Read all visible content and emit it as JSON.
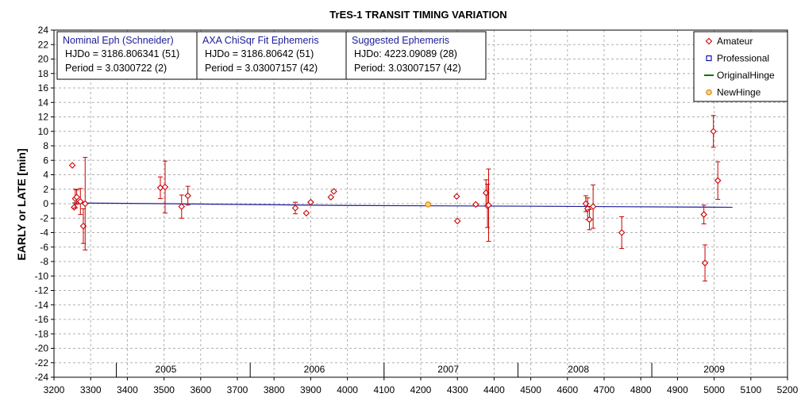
{
  "chart_data": {
    "type": "scatter",
    "title": "TrES-1 TRANSIT TIMING VARIATION",
    "ylabel": "EARLY or LATE [min]",
    "xlabel": "",
    "xlim": [
      3200,
      5200
    ],
    "ylim": [
      -24,
      24
    ],
    "x_ticks": [
      3200,
      3300,
      3400,
      3500,
      3600,
      3700,
      3800,
      3900,
      4000,
      4100,
      4200,
      4300,
      4400,
      4500,
      4600,
      4700,
      4800,
      4900,
      5000,
      5100,
      5200
    ],
    "y_ticks": [
      24,
      22,
      20,
      18,
      16,
      14,
      12,
      10,
      8,
      6,
      4,
      2,
      0,
      -2,
      -4,
      -6,
      -8,
      -10,
      -12,
      -14,
      -16,
      -18,
      -20,
      -22,
      -24
    ],
    "grid": true,
    "legend_position": "top-right",
    "legend": [
      {
        "label": "Amateur",
        "marker": "diamond",
        "color": "#cc0000"
      },
      {
        "label": "Professional",
        "marker": "square",
        "color": "#0000aa"
      },
      {
        "label": "OriginalHinge",
        "marker": "line",
        "color": "#007700"
      },
      {
        "label": "NewHinge",
        "marker": "circle",
        "color": "#e08a00"
      }
    ],
    "year_labels": [
      {
        "label": "2005",
        "x": 3505
      },
      {
        "label": "2006",
        "x": 3910
      },
      {
        "label": "2007",
        "x": 4275
      },
      {
        "label": "2008",
        "x": 4630
      },
      {
        "label": "2009",
        "x": 5000
      }
    ],
    "year_dividers": [
      3370,
      3735,
      4100,
      4465,
      4830,
      5200
    ],
    "ephemeris_boxes": [
      {
        "head": "Nominal Eph (Schneider)",
        "line1": "HJDo = 3186.806341 (51)",
        "line2": "Period = 3.0300722 (2)"
      },
      {
        "head": "AXA ChiSqr Fit Ephemeris",
        "line1": "HJDo = 3186.80642 (51)",
        "line2": "Period = 3.03007157 (42)"
      },
      {
        "head": "Suggested Ephemeris",
        "line1": "HJDo:  4223.09089 (28)",
        "line2": "Period: 3.03007157 (42)"
      }
    ],
    "trend_line": {
      "name": "Professional",
      "color": "#1c1c9a",
      "points": [
        [
          3250,
          0.1
        ],
        [
          3500,
          0.0
        ],
        [
          3800,
          -0.15
        ],
        [
          4000,
          -0.25
        ],
        [
          4500,
          -0.35
        ],
        [
          5050,
          -0.5
        ]
      ]
    },
    "series": [
      {
        "name": "Amateur",
        "color": "#cc0000",
        "points": [
          {
            "x": 3250,
            "y": 5.3,
            "err": 0
          },
          {
            "x": 3255,
            "y": -0.5,
            "err": 0
          },
          {
            "x": 3258,
            "y": 0.7,
            "err": 1.3
          },
          {
            "x": 3262,
            "y": 0.9,
            "err": 1.0
          },
          {
            "x": 3272,
            "y": 0.3,
            "err": 1.8
          },
          {
            "x": 3280,
            "y": -3.1,
            "err": 2.4
          },
          {
            "x": 3285,
            "y": 0.0,
            "err": 6.4
          },
          {
            "x": 3490,
            "y": 2.2,
            "err": 1.5
          },
          {
            "x": 3503,
            "y": 2.3,
            "err": 3.6
          },
          {
            "x": 3548,
            "y": -0.4,
            "err": 1.6
          },
          {
            "x": 3565,
            "y": 1.1,
            "err": 1.3
          },
          {
            "x": 3858,
            "y": -0.6,
            "err": 0.8
          },
          {
            "x": 3888,
            "y": -1.3,
            "err": 0
          },
          {
            "x": 3900,
            "y": 0.2,
            "err": 0
          },
          {
            "x": 3955,
            "y": 0.9,
            "err": 0
          },
          {
            "x": 3963,
            "y": 1.7,
            "err": 0
          },
          {
            "x": 4298,
            "y": 1.0,
            "err": 0
          },
          {
            "x": 4300,
            "y": -2.4,
            "err": 0
          },
          {
            "x": 4350,
            "y": -0.1,
            "err": 0
          },
          {
            "x": 4378,
            "y": 1.5,
            "err": 1.8
          },
          {
            "x": 4382,
            "y": -0.3,
            "err": 3.0
          },
          {
            "x": 4385,
            "y": -0.2,
            "err": 5.0
          },
          {
            "x": 4650,
            "y": 0.0,
            "err": 1.1
          },
          {
            "x": 4655,
            "y": -0.7,
            "err": 1.5
          },
          {
            "x": 4660,
            "y": -2.2,
            "err": 1.4
          },
          {
            "x": 4670,
            "y": -0.4,
            "err": 3.0
          },
          {
            "x": 4748,
            "y": -4.0,
            "err": 2.2
          },
          {
            "x": 4972,
            "y": -1.5,
            "err": 1.3
          },
          {
            "x": 4975,
            "y": -8.2,
            "err": 2.5
          },
          {
            "x": 4998,
            "y": 10.0,
            "err": 2.2
          },
          {
            "x": 5010,
            "y": 3.2,
            "err": 2.6
          }
        ]
      },
      {
        "name": "NewHinge",
        "color": "#e08a00",
        "points": [
          {
            "x": 4220,
            "y": -0.1,
            "err": 0
          }
        ]
      }
    ]
  }
}
